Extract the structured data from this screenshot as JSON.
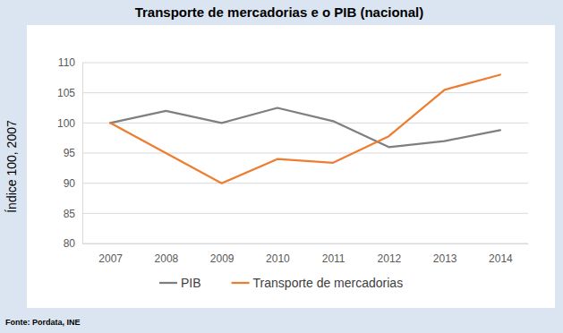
{
  "chart_data": {
    "type": "line",
    "title": "Transporte de mercadorias e o PIB (nacional)",
    "y_label": "Índice 100, 2007",
    "source": "Fonte: Pordata, INE",
    "categories": [
      "2007",
      "2008",
      "2009",
      "2010",
      "2011",
      "2012",
      "2013",
      "2014"
    ],
    "series": [
      {
        "name": "PIB",
        "color": "#7f7f7f",
        "values": [
          100,
          102,
          100,
          102.5,
          100.3,
          96,
          97,
          98.8
        ]
      },
      {
        "name": "Transporte de mercadorias",
        "color": "#ed7d31",
        "values": [
          100,
          95,
          90,
          94,
          93.4,
          97.8,
          105.5,
          108
        ]
      }
    ],
    "ylim": [
      80,
      110
    ],
    "yticks": [
      80,
      85,
      90,
      95,
      100,
      105,
      110
    ],
    "grid": true,
    "legend": "bottom"
  }
}
